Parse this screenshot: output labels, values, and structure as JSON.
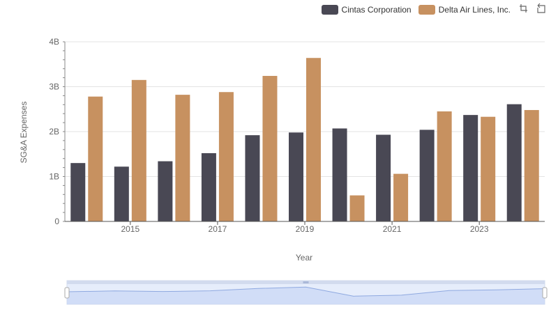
{
  "legend": {
    "items": [
      {
        "name": "Cintas Corporation",
        "color": "#494854"
      },
      {
        "name": "Delta Air Lines, Inc.",
        "color": "#c79160"
      }
    ]
  },
  "toolbox": {
    "icons": [
      "zoom-icon",
      "restore-icon"
    ]
  },
  "chart_data": {
    "type": "bar",
    "title": "",
    "xlabel": "Year",
    "ylabel": "SG&A Expenses",
    "categories": [
      "2014",
      "2015",
      "2016",
      "2017",
      "2018",
      "2019",
      "2020",
      "2021",
      "2022",
      "2023",
      "2024"
    ],
    "x_tick_labels": [
      "2015",
      "2017",
      "2019",
      "2021",
      "2023"
    ],
    "y_tick_labels": [
      "0",
      "1B",
      "2B",
      "3B",
      "4B"
    ],
    "ylim": [
      0,
      4000000000
    ],
    "series": [
      {
        "name": "Cintas Corporation",
        "color": "#494854",
        "values": [
          1300000000,
          1220000000,
          1340000000,
          1520000000,
          1920000000,
          1980000000,
          2070000000,
          1930000000,
          2040000000,
          2370000000,
          2610000000
        ]
      },
      {
        "name": "Delta Air Lines, Inc.",
        "color": "#c79160",
        "values": [
          2780000000,
          3150000000,
          2820000000,
          2880000000,
          3240000000,
          3640000000,
          580000000,
          1060000000,
          2450000000,
          2330000000,
          2480000000
        ]
      }
    ],
    "grid": true,
    "legend_position": "top-right",
    "data_zoom": true
  }
}
